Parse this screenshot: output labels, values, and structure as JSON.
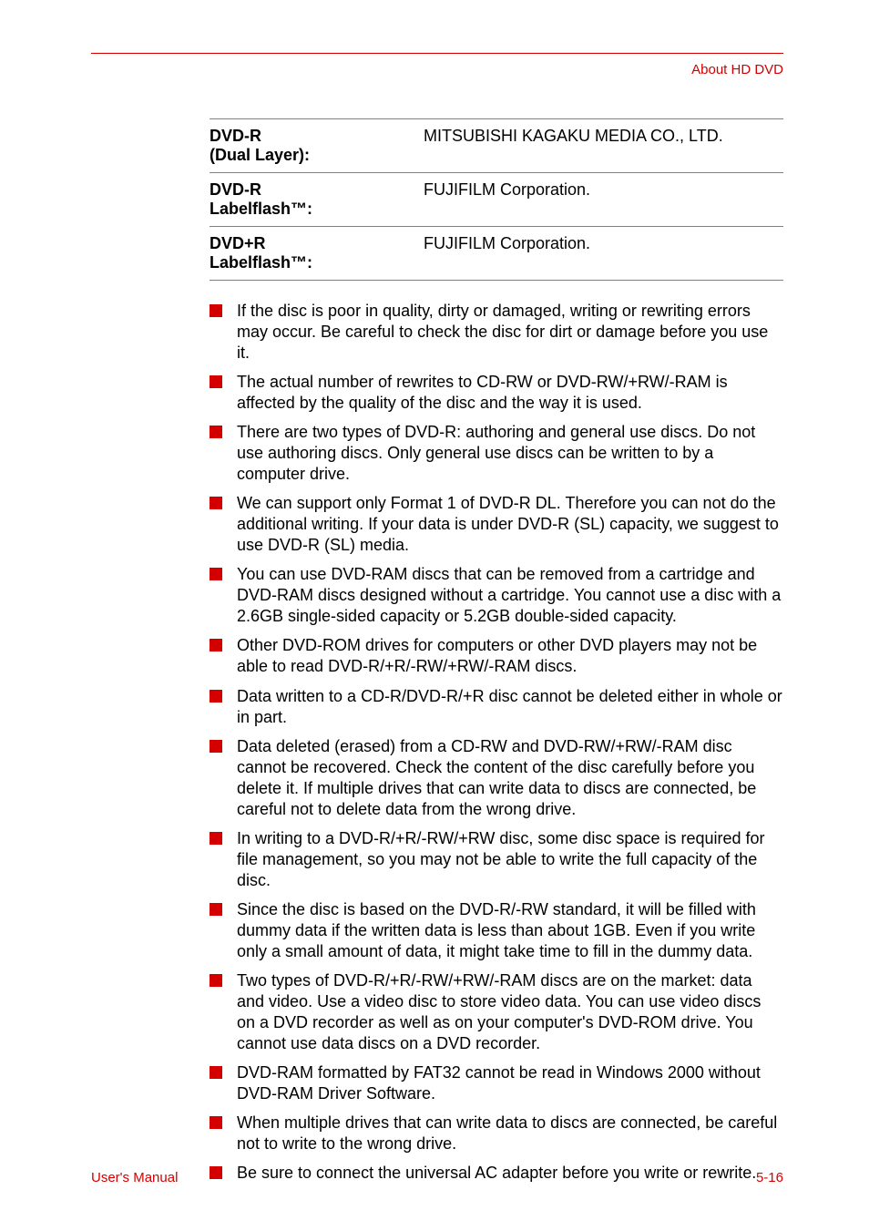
{
  "header": {
    "title": "About HD DVD"
  },
  "spec_table": {
    "rows": [
      {
        "label_line1": "DVD-R",
        "label_line2": "(Dual Layer):",
        "value": "MITSUBISHI KAGAKU MEDIA CO., LTD."
      },
      {
        "label_line1": "DVD-R",
        "label_line2": "Labelflash™:",
        "value": "FUJIFILM Corporation."
      },
      {
        "label_line1": "DVD+R",
        "label_line2": "Labelflash™:",
        "value": "FUJIFILM Corporation."
      }
    ]
  },
  "bullets": [
    "If the disc is poor in quality, dirty or damaged, writing or rewriting errors may occur. Be careful to check the disc for dirt or damage before you use it.",
    "The actual number of rewrites to CD-RW or DVD-RW/+RW/-RAM is affected by the quality of the disc and the way it is used.",
    "There are two types of DVD-R: authoring and general use discs. Do not use authoring discs. Only general use discs can be written to by a computer drive.",
    "We can support only Format 1 of DVD-R DL. Therefore you can not do the additional writing. If your data is under DVD-R (SL) capacity, we suggest to use DVD-R (SL) media.",
    "You can use DVD-RAM discs that can be removed from a cartridge and DVD-RAM discs designed without a cartridge. You cannot use a disc with a 2.6GB single-sided capacity or 5.2GB double-sided capacity.",
    "Other DVD-ROM drives for computers or other DVD players may not be able to read DVD-R/+R/-RW/+RW/-RAM discs.",
    "Data written to a CD-R/DVD-R/+R disc cannot be deleted either in whole or in part.",
    "Data deleted (erased) from a CD-RW and DVD-RW/+RW/-RAM disc cannot be recovered. Check the content of the disc carefully before you delete it. If multiple drives that can write data to discs are connected, be careful not to delete data from the wrong drive.",
    "In writing to a DVD-R/+R/-RW/+RW disc, some disc space is required for file management, so you may not be able to write the full capacity of the disc.",
    "Since the disc is based on the DVD-R/-RW standard, it will be filled with dummy data if the written data is less than about 1GB. Even if you write only a small amount of data, it might take time to fill in the dummy data.",
    "Two types of DVD-R/+R/-RW/+RW/-RAM discs are on the market: data and video. Use a video disc to store video data. You can use video discs on a DVD recorder as well as on your computer's DVD-ROM drive. You cannot use data discs on a DVD recorder.",
    "DVD-RAM formatted by FAT32 cannot be read in Windows 2000 without DVD-RAM Driver Software.",
    "When multiple drives that can write data to discs are connected, be careful not to write to the wrong drive.",
    "Be sure to connect the universal AC adapter before you write or rewrite."
  ],
  "footer": {
    "left": "User's Manual",
    "right": "5-16"
  },
  "colors": {
    "accent": "#d40000",
    "rule": "#808080",
    "text": "#000000",
    "background": "#ffffff"
  }
}
